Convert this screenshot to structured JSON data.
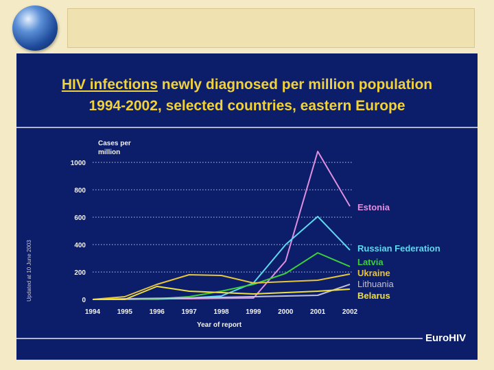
{
  "slide": {
    "title_underlined": "HIV infections",
    "title_rest": " newly diagnosed per million population",
    "title_line2": "1994-2002, selected countries, eastern Europe",
    "updated_note": "Updated at 10 June 2003",
    "brand": "EuroHIV"
  },
  "chart_data": {
    "type": "line",
    "ylabel": "Cases per million",
    "xlabel": "Year of report",
    "x": [
      1994,
      1995,
      1996,
      1997,
      1998,
      1999,
      2000,
      2001,
      2002
    ],
    "ylim": [
      0,
      1000
    ],
    "yticks": [
      0,
      200,
      400,
      600,
      800,
      1000
    ],
    "grid": "dotted horizontal",
    "series": [
      {
        "name": "Estonia",
        "color": "#e090e0",
        "values": [
          0,
          0,
          5,
          5,
          8,
          10,
          280,
          1080,
          680
        ]
      },
      {
        "name": "Russian Federation",
        "color": "#5fd8f0",
        "values": [
          0,
          1,
          2,
          10,
          25,
          120,
          400,
          605,
          360
        ]
      },
      {
        "name": "Latvia",
        "color": "#3ccf3c",
        "values": [
          0,
          0,
          5,
          20,
          60,
          110,
          190,
          340,
          240
        ]
      },
      {
        "name": "Ukraine",
        "color": "#e8c53a",
        "values": [
          0,
          20,
          110,
          180,
          175,
          120,
          130,
          140,
          185
        ]
      },
      {
        "name": "Lithuania",
        "color": "#c0c0d8",
        "values": [
          0,
          5,
          8,
          10,
          15,
          20,
          25,
          30,
          110
        ]
      },
      {
        "name": "Belarus",
        "color": "#f0e040",
        "values": [
          0,
          0,
          95,
          60,
          50,
          40,
          50,
          60,
          75
        ]
      }
    ]
  }
}
